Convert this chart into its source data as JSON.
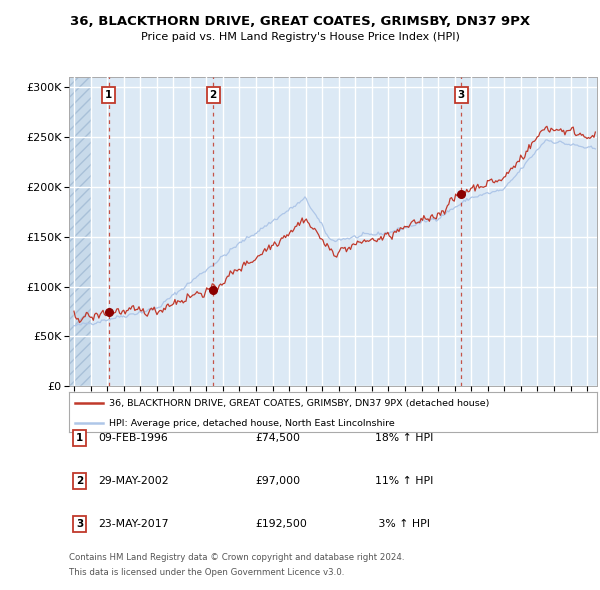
{
  "title": "36, BLACKTHORN DRIVE, GREAT COATES, GRIMSBY, DN37 9PX",
  "subtitle": "Price paid vs. HM Land Registry's House Price Index (HPI)",
  "ylim": [
    0,
    310000
  ],
  "yticks": [
    0,
    50000,
    100000,
    150000,
    200000,
    250000,
    300000
  ],
  "ytick_labels": [
    "£0",
    "£50K",
    "£100K",
    "£150K",
    "£200K",
    "£250K",
    "£300K"
  ],
  "xlim_start": 1993.7,
  "xlim_end": 2025.6,
  "hatch_end": 1995.0,
  "transactions": [
    {
      "num": 1,
      "date": "09-FEB-1996",
      "year": 1996.11,
      "price": 74500,
      "hpi_pct": "18% ↑ HPI"
    },
    {
      "num": 2,
      "date": "29-MAY-2002",
      "year": 2002.41,
      "price": 97000,
      "hpi_pct": "11% ↑ HPI"
    },
    {
      "num": 3,
      "date": "23-MAY-2017",
      "year": 2017.39,
      "price": 192500,
      "hpi_pct": "3% ↑ HPI"
    }
  ],
  "legend_line1": "36, BLACKTHORN DRIVE, GREAT COATES, GRIMSBY, DN37 9PX (detached house)",
  "legend_line2": "HPI: Average price, detached house, North East Lincolnshire",
  "footnote1": "Contains HM Land Registry data © Crown copyright and database right 2024.",
  "footnote2": "This data is licensed under the Open Government Licence v3.0.",
  "hpi_color": "#aec6e8",
  "price_color": "#c0392b",
  "marker_color": "#8b0000",
  "bg_color": "#dce9f5",
  "grid_color": "#ffffff"
}
